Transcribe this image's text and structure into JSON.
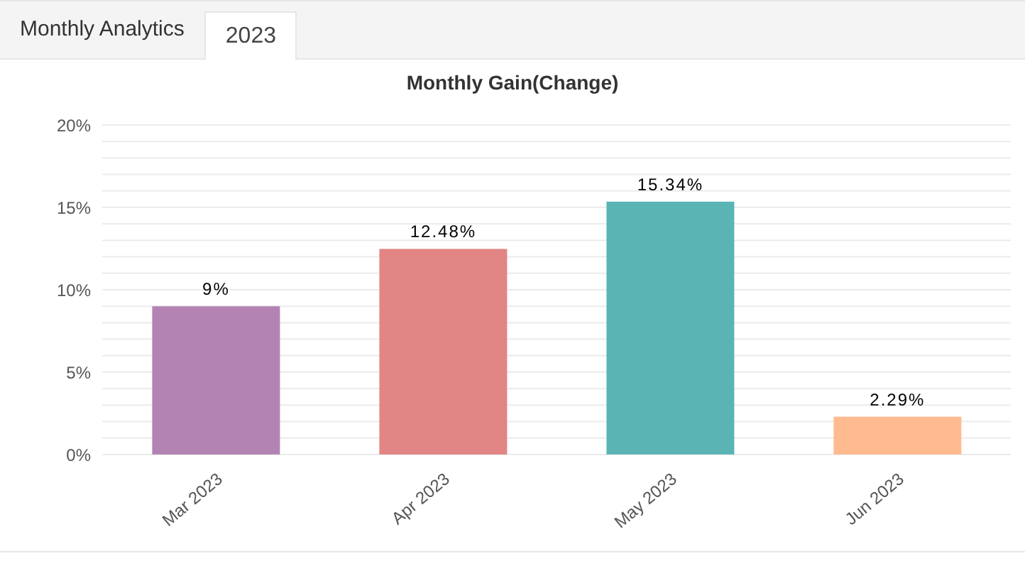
{
  "chart_data": {
    "type": "bar",
    "title": "Monthly Gain(Change)",
    "annotations": [
      "Monthly Analytics",
      "2023"
    ],
    "categories": [
      "Mar 2023",
      "Apr 2023",
      "May 2023",
      "Jun 2023"
    ],
    "values": [
      9,
      12.48,
      15.34,
      2.29
    ],
    "colors": [
      "#b384b3",
      "#e18684",
      "#5bb4b4",
      "#ffbb8f"
    ],
    "value_labels": [
      "9%",
      "12.48%",
      "15.34%",
      "2.29%"
    ],
    "ylim": [
      0,
      20
    ],
    "yticks": [
      {
        "value": 0,
        "label": "0%"
      },
      {
        "value": 1,
        "label": null
      },
      {
        "value": 2,
        "label": null
      },
      {
        "value": 3,
        "label": null
      },
      {
        "value": 4,
        "label": null
      },
      {
        "value": 5,
        "label": "5%"
      },
      {
        "value": 6,
        "label": null
      },
      {
        "value": 7,
        "label": null
      },
      {
        "value": 8,
        "label": null
      },
      {
        "value": 9,
        "label": null
      },
      {
        "value": 10,
        "label": "10%"
      },
      {
        "value": 11,
        "label": null
      },
      {
        "value": 12,
        "label": null
      },
      {
        "value": 13,
        "label": null
      },
      {
        "value": 14,
        "label": null
      },
      {
        "value": 15,
        "label": "15%"
      },
      {
        "value": 16,
        "label": null
      },
      {
        "value": 17,
        "label": null
      },
      {
        "value": 18,
        "label": null
      },
      {
        "value": 19,
        "label": null
      },
      {
        "value": 20,
        "label": "20%"
      }
    ],
    "grid": "y",
    "legend": false
  }
}
